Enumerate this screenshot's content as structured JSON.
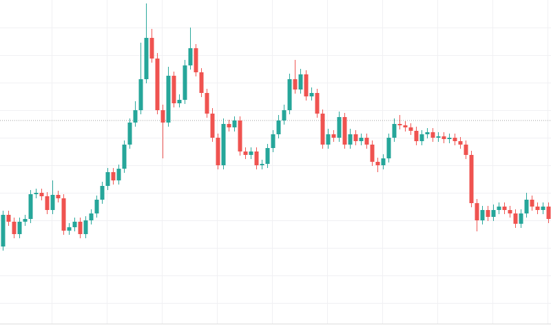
{
  "chart_data": {
    "type": "candlestick",
    "open": [
      114,
      160,
      150,
      132,
      150,
      154,
      190,
      192,
      187,
      167,
      189,
      184,
      137,
      142,
      150,
      132,
      152,
      162,
      182,
      202,
      222,
      210,
      227,
      262,
      294,
      312,
      357,
      417,
      387,
      312,
      294,
      362,
      322,
      327,
      377,
      402,
      367,
      337,
      307,
      272,
      232,
      292,
      287,
      297,
      252,
      247,
      252,
      232,
      234,
      257,
      277,
      297,
      312,
      357,
      342,
      364,
      332,
      337,
      307,
      262,
      277,
      272,
      302,
      262,
      277,
      267,
      272,
      262,
      237,
      232,
      242,
      272,
      292,
      290,
      287,
      282,
      267,
      277,
      280,
      272,
      274,
      270,
      272,
      267,
      262,
      247,
      177,
      152,
      167,
      157,
      167,
      172,
      167,
      162,
      147,
      162,
      182,
      172,
      167,
      172
    ],
    "high": [
      166,
      166,
      156,
      156,
      160,
      196,
      198,
      198,
      193,
      210,
      195,
      190,
      148,
      156,
      156,
      158,
      168,
      188,
      208,
      228,
      228,
      233,
      268,
      300,
      325,
      410,
      467,
      430,
      395,
      320,
      375,
      368,
      335,
      385,
      432,
      408,
      373,
      343,
      315,
      278,
      300,
      298,
      303,
      303,
      258,
      258,
      258,
      240,
      263,
      283,
      305,
      320,
      365,
      385,
      372,
      370,
      345,
      343,
      313,
      285,
      283,
      310,
      308,
      285,
      283,
      278,
      278,
      268,
      243,
      248,
      278,
      300,
      305,
      296,
      293,
      288,
      283,
      286,
      286,
      280,
      280,
      278,
      278,
      273,
      268,
      253,
      183,
      173,
      173,
      175,
      178,
      178,
      173,
      168,
      168,
      192,
      188,
      178,
      178,
      178
    ],
    "low": [
      108,
      144,
      126,
      126,
      144,
      148,
      184,
      181,
      161,
      161,
      178,
      131,
      131,
      136,
      126,
      126,
      146,
      156,
      176,
      196,
      204,
      204,
      221,
      256,
      288,
      306,
      351,
      381,
      306,
      242,
      288,
      316,
      316,
      321,
      371,
      361,
      331,
      301,
      266,
      226,
      226,
      281,
      281,
      246,
      241,
      241,
      226,
      226,
      228,
      251,
      271,
      291,
      306,
      336,
      336,
      326,
      326,
      301,
      256,
      256,
      266,
      266,
      256,
      256,
      261,
      261,
      256,
      231,
      222,
      226,
      236,
      266,
      284,
      281,
      276,
      261,
      261,
      271,
      266,
      266,
      264,
      264,
      261,
      256,
      241,
      171,
      136,
      146,
      151,
      151,
      161,
      161,
      156,
      141,
      141,
      156,
      166,
      161,
      161,
      148
    ],
    "close": [
      160,
      150,
      132,
      150,
      154,
      190,
      192,
      187,
      167,
      189,
      184,
      137,
      142,
      150,
      132,
      152,
      162,
      182,
      202,
      222,
      210,
      227,
      262,
      294,
      312,
      357,
      417,
      387,
      312,
      294,
      362,
      322,
      327,
      377,
      402,
      367,
      337,
      307,
      272,
      232,
      292,
      287,
      297,
      252,
      247,
      252,
      232,
      234,
      257,
      277,
      297,
      312,
      357,
      342,
      364,
      332,
      337,
      307,
      262,
      277,
      272,
      302,
      262,
      277,
      267,
      272,
      262,
      237,
      232,
      242,
      272,
      292,
      290,
      287,
      282,
      267,
      277,
      280,
      272,
      274,
      270,
      272,
      267,
      262,
      247,
      177,
      152,
      167,
      157,
      167,
      172,
      167,
      162,
      147,
      162,
      182,
      172,
      167,
      172,
      154
    ],
    "up_color": "#26a69a",
    "down_color": "#ef5350",
    "ylim": [
      0,
      472
    ],
    "grid": true,
    "price_line": 297
  }
}
